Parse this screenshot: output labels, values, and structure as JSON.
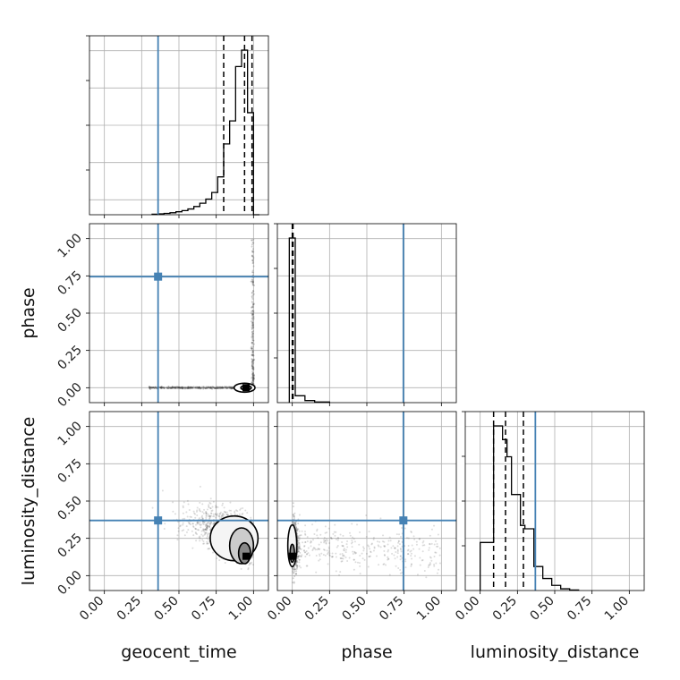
{
  "chart_data": {
    "type": "corner",
    "parameters": [
      "geocent_time",
      "phase",
      "luminosity_distance"
    ],
    "axis_labels": {
      "x": [
        "geocent_time",
        "phase",
        "luminosity_distance"
      ],
      "y": [
        "",
        "phase",
        "luminosity_distance"
      ]
    },
    "ticks": [
      0.0,
      0.25,
      0.5,
      0.75,
      1.0
    ],
    "tick_labels": [
      "0.00",
      "0.25",
      "0.50",
      "0.75",
      "1.00"
    ],
    "range": [
      -0.1,
      1.1
    ],
    "grid": true,
    "truths": [
      0.36,
      0.745,
      0.37
    ],
    "truth_color": "#4682b4",
    "line_color": "#000000",
    "histograms": [
      {
        "parameter": "geocent_time",
        "bin_edges": [
          0.32,
          0.36,
          0.4,
          0.44,
          0.48,
          0.52,
          0.56,
          0.6,
          0.64,
          0.68,
          0.72,
          0.76,
          0.8,
          0.84,
          0.88,
          0.92,
          0.96,
          1.0,
          1.04
        ],
        "counts": [
          0.003,
          0.005,
          0.008,
          0.012,
          0.018,
          0.025,
          0.035,
          0.05,
          0.07,
          0.095,
          0.135,
          0.23,
          0.43,
          0.57,
          0.9,
          1.0,
          0.62,
          0.0
        ],
        "quantile_lines": [
          0.8,
          0.94,
          0.99
        ]
      },
      {
        "parameter": "phase",
        "bin_edges": [
          -0.02,
          0.02,
          0.085,
          0.15,
          0.25
        ],
        "counts": [
          0.96,
          0.04,
          0.012,
          0.004
        ],
        "quantile_lines": [
          0.0,
          0.005
        ]
      },
      {
        "parameter": "luminosity_distance",
        "bin_edges": [
          0.0,
          0.06,
          0.09,
          0.15,
          0.18,
          0.21,
          0.27,
          0.3,
          0.36,
          0.42,
          0.48,
          0.54,
          0.6,
          0.66
        ],
        "counts": [
          0.28,
          0.28,
          0.96,
          0.88,
          0.78,
          0.56,
          0.38,
          0.36,
          0.14,
          0.07,
          0.03,
          0.01,
          0.003
        ],
        "quantile_lines": [
          0.09,
          0.17,
          0.29
        ]
      }
    ],
    "contours": [
      {
        "x_parameter": "geocent_time",
        "y_parameter": "phase",
        "levels": [
          {
            "center": [
              0.94,
              0.0
            ],
            "radius": [
              0.07,
              0.03
            ],
            "fill": "#ffffff"
          },
          {
            "center": [
              0.95,
              0.0
            ],
            "radius": [
              0.035,
              0.015
            ],
            "fill": "#999999"
          }
        ],
        "peak": [
          0.95,
          0.0
        ]
      },
      {
        "x_parameter": "geocent_time",
        "y_parameter": "luminosity_distance",
        "levels": [
          {
            "center": [
              0.87,
              0.25
            ],
            "radius": [
              0.16,
              0.15
            ],
            "fill": "#f5f5f5"
          },
          {
            "center": [
              0.92,
              0.2
            ],
            "radius": [
              0.08,
              0.12
            ],
            "fill": "#cccccc"
          },
          {
            "center": [
              0.94,
              0.15
            ],
            "radius": [
              0.04,
              0.07
            ],
            "fill": "#888888"
          }
        ],
        "peak": [
          0.95,
          0.13
        ]
      },
      {
        "x_parameter": "phase",
        "y_parameter": "luminosity_distance",
        "levels": [
          {
            "center": [
              0.0,
              0.2
            ],
            "radius": [
              0.03,
              0.14
            ],
            "fill": "#f5f5f5"
          },
          {
            "center": [
              0.0,
              0.15
            ],
            "radius": [
              0.015,
              0.06
            ],
            "fill": "#888888"
          }
        ],
        "peak": [
          0.0,
          0.13
        ]
      }
    ]
  }
}
